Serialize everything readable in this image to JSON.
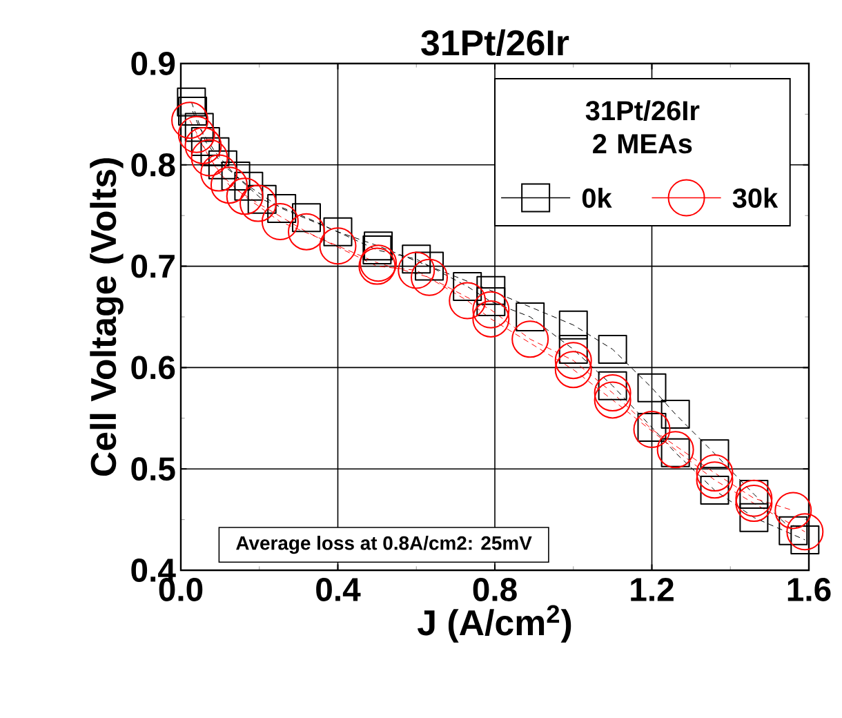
{
  "chart_data": {
    "type": "line",
    "title": "31Pt/26Ir",
    "xlabel": "J (A/cm$^{2}$)",
    "ylabel": "Cell Voltage (Volts)",
    "legend_title": "31Pt/26Ir 2 MEAs",
    "annotations": [
      "Average loss at 0.8A/cm2:  25mV"
    ],
    "xlim": [
      0,
      1.6
    ],
    "ylim": [
      0.4,
      0.9
    ],
    "xticks": [
      {
        "value": 0,
        "label": "0.0"
      },
      0.4,
      0.8,
      1.2,
      1.6
    ],
    "yticks": [
      0.4,
      0.5,
      0.6,
      0.7,
      0.8,
      0.9
    ],
    "grid": true,
    "legend": "top right",
    "line_style": "dashed",
    "series": [
      {
        "name": "0k",
        "color": "#000000",
        "marker": "square",
        "x": [
          0.027,
          0.063,
          0.107,
          0.173,
          0.257,
          0.4,
          0.503,
          0.633,
          0.79,
          1.0,
          1.1,
          1.2,
          1.26,
          1.36,
          1.46,
          1.56
        ],
        "values": [
          0.862,
          0.823,
          0.8,
          0.779,
          0.757,
          0.734,
          0.72,
          0.7,
          0.676,
          0.642,
          0.618,
          0.58,
          0.554,
          0.515,
          0.475,
          0.439
        ]
      },
      {
        "color": "#000000",
        "marker": "square",
        "x": [
          0.03,
          0.047,
          0.087,
          0.14,
          0.207,
          0.32,
          0.5,
          0.6,
          0.73,
          0.79,
          0.89,
          1.0,
          1.1,
          1.2,
          1.26,
          1.36,
          1.46,
          1.59
        ],
        "values": [
          0.853,
          0.837,
          0.813,
          0.789,
          0.766,
          0.748,
          0.716,
          0.707,
          0.68,
          0.665,
          0.65,
          0.618,
          0.582,
          0.541,
          0.516,
          0.479,
          0.452,
          0.43
        ]
      },
      {
        "name": "30k",
        "color": "#ff0000",
        "marker": "circle",
        "x": [
          0.023,
          0.057,
          0.097,
          0.163,
          0.253,
          0.4,
          0.503,
          0.633,
          0.79,
          0.89,
          1.0,
          1.1,
          1.2,
          1.36,
          1.46,
          1.56
        ],
        "values": [
          0.844,
          0.819,
          0.792,
          0.769,
          0.744,
          0.72,
          0.703,
          0.689,
          0.657,
          0.628,
          0.607,
          0.575,
          0.539,
          0.496,
          0.471,
          0.459
        ]
      },
      {
        "color": "#ff0000",
        "marker": "circle",
        "x": [
          0.04,
          0.073,
          0.123,
          0.197,
          0.32,
          0.5,
          0.6,
          0.73,
          0.79,
          1.0,
          1.1,
          1.26,
          1.36,
          1.46,
          1.59
        ],
        "values": [
          0.83,
          0.807,
          0.78,
          0.762,
          0.734,
          0.7,
          0.696,
          0.666,
          0.648,
          0.598,
          0.568,
          0.519,
          0.489,
          0.466,
          0.438
        ]
      }
    ]
  }
}
